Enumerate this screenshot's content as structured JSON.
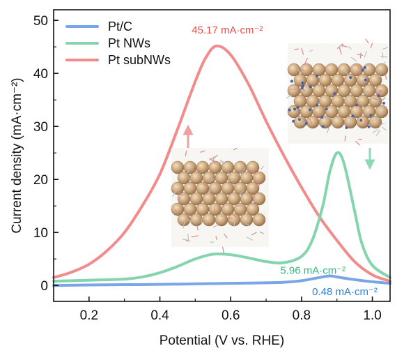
{
  "chart_data": {
    "type": "line",
    "xlabel": "Potential (V vs. RHE)",
    "ylabel": "Current density (mA·cm⁻²)",
    "xlim": [
      0.1,
      1.05
    ],
    "ylim": [
      -3,
      52
    ],
    "xticks": [
      0.2,
      0.4,
      0.6,
      0.8,
      1.0
    ],
    "xtick_labels": [
      "0.2",
      "0.4",
      "0.6",
      "0.8",
      "1.0"
    ],
    "yticks": [
      0,
      10,
      20,
      30,
      40,
      50
    ],
    "ytick_labels": [
      "0",
      "10",
      "20",
      "30",
      "40",
      "50"
    ],
    "grid": false,
    "legend_position": "top-left",
    "series": [
      {
        "name": "Pt/C",
        "color": "#7aa6e8",
        "x": [
          0.1,
          0.2,
          0.3,
          0.4,
          0.5,
          0.6,
          0.7,
          0.75,
          0.8,
          0.85,
          0.88,
          0.9,
          0.95,
          1.0,
          1.05
        ],
        "y": [
          0.0,
          0.1,
          0.15,
          0.2,
          0.3,
          0.4,
          0.5,
          0.6,
          0.9,
          1.5,
          1.8,
          1.6,
          1.1,
          0.7,
          0.4
        ]
      },
      {
        "name": "Pt NWs",
        "color": "#84d4ae",
        "x": [
          0.1,
          0.15,
          0.2,
          0.3,
          0.35,
          0.4,
          0.45,
          0.5,
          0.55,
          0.6,
          0.65,
          0.7,
          0.75,
          0.8,
          0.83,
          0.86,
          0.88,
          0.9,
          0.92,
          0.95,
          0.97,
          1.0,
          1.05
        ],
        "y": [
          0.8,
          0.9,
          1.0,
          1.2,
          1.6,
          2.4,
          3.6,
          5.0,
          5.9,
          5.8,
          5.2,
          4.5,
          4.3,
          5.5,
          8.5,
          15.0,
          21.5,
          25.0,
          23.0,
          14.0,
          8.0,
          3.8,
          1.5
        ]
      },
      {
        "name": "Pt subNWs",
        "color": "#f28b8b",
        "x": [
          0.1,
          0.15,
          0.2,
          0.25,
          0.3,
          0.35,
          0.4,
          0.45,
          0.5,
          0.53,
          0.56,
          0.6,
          0.65,
          0.7,
          0.75,
          0.8,
          0.85,
          0.9,
          0.95,
          1.0,
          1.05
        ],
        "y": [
          1.5,
          2.5,
          4.0,
          6.5,
          10.0,
          15.0,
          21.0,
          29.5,
          38.5,
          43.0,
          45.17,
          43.5,
          38.0,
          31.0,
          24.5,
          18.5,
          13.0,
          8.5,
          4.5,
          2.0,
          0.8
        ]
      }
    ],
    "annotations": [
      {
        "text": "45.17 mA·cm⁻²",
        "x": 0.49,
        "y": 47.5,
        "color": "#ee4b4b"
      },
      {
        "text": "5.96 mA·cm⁻²",
        "x": 0.74,
        "y": 2.2,
        "color": "#3cb47a"
      },
      {
        "text": "0.48 mA·cm⁻²",
        "x": 0.83,
        "y": -1.8,
        "color": "#2f7fd6"
      }
    ]
  }
}
